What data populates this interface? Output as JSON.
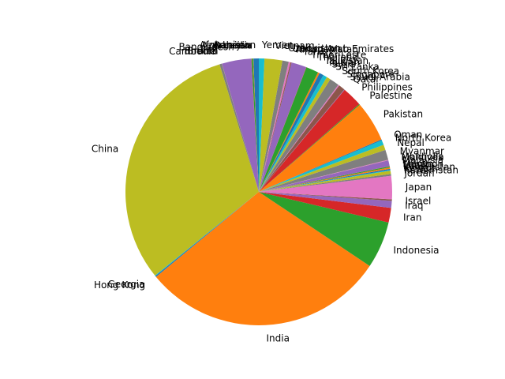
{
  "chart_data": {
    "type": "pie",
    "title": "",
    "start_angle_deg": 90,
    "direction": "counterclockwise",
    "colors": [
      "#1f77b4",
      "#ff7f0e",
      "#2ca02c",
      "#d62728",
      "#9467bd",
      "#8c564b",
      "#e377c2",
      "#7f7f7f",
      "#bcbd22",
      "#17becf"
    ],
    "slices": [
      {
        "label": "Afghanistan",
        "value": 0.65
      },
      {
        "label": "Armenia",
        "value": 0.05
      },
      {
        "label": "Azerbaijan",
        "value": 0.18
      },
      {
        "label": "Bahrain",
        "value": 0.03
      },
      {
        "label": "Bangladesh",
        "value": 3.53
      },
      {
        "label": "Bhutan",
        "value": 0.01
      },
      {
        "label": "Brunei",
        "value": 0.01
      },
      {
        "label": "Cambodia",
        "value": 0.28
      },
      {
        "label": "China",
        "value": 30.88
      },
      {
        "label": "Georgia",
        "value": 0.07
      },
      {
        "label": "Hong Kong",
        "value": 0.13
      },
      {
        "label": "India",
        "value": 29.49
      },
      {
        "label": "Indonesia",
        "value": 5.65
      },
      {
        "label": "Iran",
        "value": 1.76
      },
      {
        "label": "Iraq",
        "value": 0.85
      },
      {
        "label": "Israel",
        "value": 0.17
      },
      {
        "label": "Japan",
        "value": 2.81
      },
      {
        "label": "Jordan",
        "value": 0.22
      },
      {
        "label": "Kazakhstan",
        "value": 0.39
      },
      {
        "label": "Kuwait",
        "value": 0.09
      },
      {
        "label": "Kyrgyzstan",
        "value": 0.14
      },
      {
        "label": "Laos",
        "value": 0.16
      },
      {
        "label": "Lebanon",
        "value": 0.14
      },
      {
        "label": "Macao",
        "value": 0.01
      },
      {
        "label": "Malaysia",
        "value": 0.71
      },
      {
        "label": "Maldives",
        "value": 0.01
      },
      {
        "label": "Mongolia",
        "value": 0.07
      },
      {
        "label": "Myanmar",
        "value": 1.21
      },
      {
        "label": "Nepal",
        "value": 0.64
      },
      {
        "label": "North Korea",
        "value": 0.57
      },
      {
        "label": "Oman",
        "value": 0.11
      },
      {
        "label": "Pakistan",
        "value": 4.88
      },
      {
        "label": "Palestine",
        "value": 0.11
      },
      {
        "label": "Philippines",
        "value": 2.42
      },
      {
        "label": "Qatar",
        "value": 0.06
      },
      {
        "label": "Saudi Arabia",
        "value": 0.77
      },
      {
        "label": "Singapore",
        "value": 0.13
      },
      {
        "label": "South Korea",
        "value": 1.16
      },
      {
        "label": "Sri Lanka",
        "value": 0.48
      },
      {
        "label": "Syria",
        "value": 0.47
      },
      {
        "label": "Taiwan",
        "value": 0.52
      },
      {
        "label": "Tajikistan",
        "value": 0.2
      },
      {
        "label": "Thailand",
        "value": 1.51
      },
      {
        "label": "Timor-Leste",
        "value": 0.03
      },
      {
        "label": "Turkey",
        "value": 1.82
      },
      {
        "label": "Turkmenistan",
        "value": 0.14
      },
      {
        "label": "United Arab Emirates",
        "value": 0.21
      },
      {
        "label": "Uzbekistan",
        "value": 0.76
      },
      {
        "label": "Vietnam",
        "value": 2.15
      },
      {
        "label": "Yemen",
        "value": 0.67
      }
    ]
  }
}
